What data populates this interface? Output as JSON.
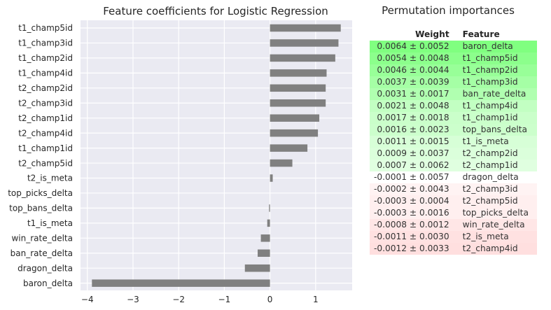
{
  "left_chart_title": "Feature coefficients for Logistic Regression",
  "right_panel": {
    "title": "Permutation importances",
    "headers": {
      "weight": "Weight",
      "feature": "Feature"
    },
    "rows": [
      {
        "weight": "0.0064 ± 0.0052",
        "feature": "baron_delta",
        "color": "#80ff80"
      },
      {
        "weight": "0.0054 ± 0.0048",
        "feature": "t1_champ5id",
        "color": "#8cff8c"
      },
      {
        "weight": "0.0046 ± 0.0044",
        "feature": "t1_champ2id",
        "color": "#98ff98"
      },
      {
        "weight": "0.0037 ± 0.0039",
        "feature": "t1_champ3id",
        "color": "#a5ffa5"
      },
      {
        "weight": "0.0031 ± 0.0017",
        "feature": "ban_rate_delta",
        "color": "#b0ffb0"
      },
      {
        "weight": "0.0021 ± 0.0048",
        "feature": "t1_champ4id",
        "color": "#c2ffc2"
      },
      {
        "weight": "0.0017 ± 0.0018",
        "feature": "t1_champ1id",
        "color": "#caffca"
      },
      {
        "weight": "0.0016 ± 0.0023",
        "feature": "top_bans_delta",
        "color": "#ccffcc"
      },
      {
        "weight": "0.0011 ± 0.0015",
        "feature": "t1_is_meta",
        "color": "#d7ffd7"
      },
      {
        "weight": "0.0009 ± 0.0037",
        "feature": "t2_champ2id",
        "color": "#dbffdb"
      },
      {
        "weight": "0.0007 ± 0.0062",
        "feature": "t2_champ1id",
        "color": "#e0ffe0"
      },
      {
        "weight": "-0.0001 ± 0.0057",
        "feature": "dragon_delta",
        "color": "#ffffff"
      },
      {
        "weight": "-0.0002 ± 0.0043",
        "feature": "t2_champ3id",
        "color": "#fff3f3"
      },
      {
        "weight": "-0.0003 ± 0.0004",
        "feature": "t2_champ5id",
        "color": "#ffefef"
      },
      {
        "weight": "-0.0003 ± 0.0016",
        "feature": "top_picks_delta",
        "color": "#ffefef"
      },
      {
        "weight": "-0.0008 ± 0.0012",
        "feature": "win_rate_delta",
        "color": "#ffe6e6"
      },
      {
        "weight": "-0.0011 ± 0.0030",
        "feature": "t2_is_meta",
        "color": "#ffe1e1"
      },
      {
        "weight": "-0.0012 ± 0.0033",
        "feature": "t2_champ4id",
        "color": "#ffdfdf"
      }
    ]
  },
  "chart_data": {
    "type": "bar",
    "orientation": "horizontal",
    "title": "Feature coefficients for Logistic Regression",
    "xlabel": "",
    "ylabel": "",
    "xlim": [
      -4.15,
      1.8
    ],
    "xticks": [
      -4,
      -3,
      -2,
      -1,
      0,
      1
    ],
    "grid": true,
    "bar_color": "#808080",
    "categories": [
      "t1_champ5id",
      "t1_champ3id",
      "t1_champ2id",
      "t1_champ4id",
      "t2_champ2id",
      "t2_champ3id",
      "t2_champ1id",
      "t2_champ4id",
      "t1_champ1id",
      "t2_champ5id",
      "t2_is_meta",
      "top_picks_delta",
      "top_bans_delta",
      "t1_is_meta",
      "win_rate_delta",
      "ban_rate_delta",
      "dragon_delta",
      "baron_delta"
    ],
    "values": [
      1.55,
      1.5,
      1.43,
      1.24,
      1.22,
      1.22,
      1.08,
      1.05,
      0.82,
      0.49,
      0.06,
      0.0,
      -0.02,
      -0.06,
      -0.2,
      -0.27,
      -0.55,
      -3.9
    ]
  }
}
